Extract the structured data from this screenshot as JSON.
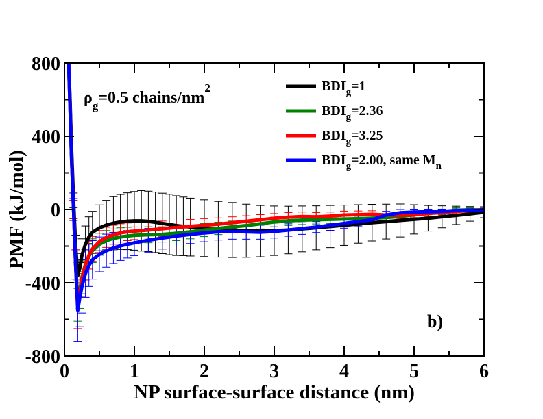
{
  "chart_data": {
    "type": "line",
    "title": "",
    "xlabel": "NP surface-surface distance (nm)",
    "ylabel": "PMF (kJ/mol)",
    "xlim": [
      0,
      6
    ],
    "ylim": [
      -800,
      800
    ],
    "x_ticks": [
      0,
      1,
      2,
      3,
      4,
      5,
      6
    ],
    "y_ticks": [
      -800,
      -400,
      0,
      400,
      800
    ],
    "x_tick_labels": [
      "0",
      "1",
      "2",
      "3",
      "4",
      "5",
      "6"
    ],
    "y_tick_labels": [
      "-800",
      "-400",
      "0",
      "400",
      "800"
    ],
    "grid": false,
    "legend_position": "top-right",
    "annotation": {
      "rho": "ρ",
      "rho_sub": "g",
      "value": "=0.5 chains/nm",
      "sup": "2"
    },
    "panel_label": "b)",
    "series": [
      {
        "name": "BDIg=1",
        "legend": {
          "base": "BDI",
          "sub": "g",
          "rest": "=1",
          "sub2": ""
        },
        "color": "#000000",
        "x": [
          0.06,
          0.08,
          0.1,
          0.13,
          0.16,
          0.19,
          0.22,
          0.25,
          0.3,
          0.35,
          0.4,
          0.5,
          0.6,
          0.7,
          0.8,
          0.9,
          1.0,
          1.1,
          1.2,
          1.3,
          1.4,
          1.5,
          1.6,
          1.7,
          1.8,
          2.0,
          2.2,
          2.4,
          2.6,
          2.8,
          3.0,
          3.2,
          3.4,
          3.6,
          3.8,
          4.0,
          4.2,
          4.4,
          4.6,
          4.8,
          5.0,
          5.2,
          5.4,
          5.6,
          5.8,
          6.0
        ],
        "y": [
          800,
          600,
          350,
          50,
          -200,
          -360,
          -320,
          -250,
          -190,
          -150,
          -125,
          -100,
          -85,
          -75,
          -68,
          -64,
          -62,
          -62,
          -65,
          -70,
          -76,
          -82,
          -88,
          -92,
          -96,
          -102,
          -108,
          -112,
          -116,
          -118,
          -116,
          -112,
          -106,
          -100,
          -93,
          -86,
          -79,
          -72,
          -66,
          -60,
          -54,
          -48,
          -40,
          -32,
          -24,
          -15
        ],
        "error": [
          0,
          0,
          0,
          40,
          60,
          70,
          80,
          90,
          100,
          110,
          115,
          125,
          135,
          145,
          150,
          155,
          160,
          165,
          165,
          165,
          165,
          165,
          163,
          160,
          158,
          155,
          152,
          150,
          145,
          140,
          135,
          130,
          125,
          120,
          115,
          110,
          105,
          100,
          95,
          90,
          80,
          70,
          60,
          50,
          40,
          30
        ]
      },
      {
        "name": "BDIg=2.36",
        "legend": {
          "base": "BDI",
          "sub": "g",
          "rest": "=2.36",
          "sub2": ""
        },
        "color": "#008000",
        "x": [
          0.06,
          0.08,
          0.1,
          0.13,
          0.16,
          0.19,
          0.22,
          0.25,
          0.3,
          0.35,
          0.4,
          0.5,
          0.6,
          0.7,
          0.8,
          0.9,
          1.0,
          1.2,
          1.4,
          1.6,
          1.8,
          2.0,
          2.2,
          2.4,
          2.6,
          2.8,
          3.0,
          3.2,
          3.4,
          3.6,
          3.8,
          4.0,
          4.2,
          4.4,
          4.6,
          4.8,
          5.0,
          5.2,
          5.4,
          5.6,
          5.8,
          6.0
        ],
        "y": [
          800,
          560,
          300,
          0,
          -300,
          -500,
          -440,
          -370,
          -300,
          -255,
          -225,
          -190,
          -170,
          -158,
          -150,
          -145,
          -141,
          -138,
          -136,
          -130,
          -122,
          -112,
          -103,
          -95,
          -88,
          -78,
          -68,
          -62,
          -58,
          -56,
          -54,
          -52,
          -50,
          -48,
          -44,
          -38,
          -30,
          -20,
          -12,
          -4,
          -2,
          -5
        ],
        "error": [
          0,
          0,
          0,
          50,
          80,
          110,
          100,
          90,
          80,
          70,
          65,
          60,
          55,
          52,
          50,
          48,
          46,
          44,
          42,
          40,
          38,
          36,
          34,
          32,
          30,
          28,
          26,
          25,
          24,
          23,
          22,
          21,
          20,
          19,
          18,
          17,
          16,
          15,
          14,
          13,
          12,
          12
        ]
      },
      {
        "name": "BDIg=3.25",
        "legend": {
          "base": "BDI",
          "sub": "g",
          "rest": "=3.25",
          "sub2": ""
        },
        "color": "#ff0000",
        "x": [
          0.06,
          0.08,
          0.1,
          0.13,
          0.16,
          0.19,
          0.22,
          0.25,
          0.3,
          0.35,
          0.4,
          0.5,
          0.6,
          0.7,
          0.8,
          0.9,
          1.0,
          1.2,
          1.4,
          1.6,
          1.8,
          2.0,
          2.2,
          2.4,
          2.6,
          2.8,
          3.0,
          3.2,
          3.4,
          3.6,
          3.8,
          4.0,
          4.2,
          4.4,
          4.6,
          4.8,
          5.0,
          5.2,
          5.4,
          5.6,
          5.8,
          6.0
        ],
        "y": [
          800,
          560,
          300,
          0,
          -300,
          -520,
          -460,
          -380,
          -300,
          -250,
          -215,
          -175,
          -152,
          -138,
          -128,
          -122,
          -118,
          -112,
          -105,
          -98,
          -92,
          -86,
          -80,
          -72,
          -64,
          -56,
          -48,
          -42,
          -38,
          -40,
          -36,
          -30,
          -28,
          -26,
          -30,
          -32,
          -28,
          -22,
          -16,
          -10,
          -6,
          -4
        ],
        "error": [
          0,
          0,
          0,
          50,
          80,
          130,
          110,
          95,
          85,
          75,
          68,
          60,
          55,
          52,
          50,
          48,
          46,
          44,
          42,
          40,
          38,
          36,
          34,
          32,
          30,
          28,
          26,
          25,
          24,
          23,
          22,
          21,
          20,
          19,
          18,
          17,
          16,
          15,
          14,
          13,
          12,
          12
        ]
      },
      {
        "name": "BDIg=2.00, same Mn",
        "legend": {
          "base": "BDI",
          "sub": "g",
          "rest": "=2.00, same M",
          "sub2": "n"
        },
        "color": "#0000ff",
        "x": [
          0.06,
          0.08,
          0.1,
          0.13,
          0.16,
          0.19,
          0.22,
          0.25,
          0.3,
          0.35,
          0.4,
          0.5,
          0.6,
          0.7,
          0.8,
          0.9,
          1.0,
          1.2,
          1.4,
          1.6,
          1.8,
          2.0,
          2.2,
          2.4,
          2.6,
          2.8,
          3.0,
          3.2,
          3.4,
          3.6,
          3.8,
          4.0,
          4.2,
          4.4,
          4.6,
          4.8,
          5.0,
          5.2,
          5.4,
          5.6,
          5.8,
          6.0
        ],
        "y": [
          800,
          560,
          300,
          0,
          -300,
          -550,
          -480,
          -420,
          -350,
          -305,
          -275,
          -245,
          -225,
          -210,
          -198,
          -190,
          -182,
          -168,
          -156,
          -145,
          -136,
          -128,
          -122,
          -120,
          -122,
          -124,
          -120,
          -112,
          -104,
          -96,
          -86,
          -76,
          -66,
          -56,
          -30,
          -18,
          -14,
          -12,
          -10,
          -6,
          -4,
          -2
        ],
        "error": [
          0,
          0,
          0,
          60,
          100,
          170,
          160,
          145,
          130,
          115,
          105,
          95,
          90,
          85,
          80,
          75,
          70,
          65,
          60,
          55,
          50,
          48,
          45,
          42,
          40,
          38,
          36,
          34,
          32,
          30,
          28,
          26,
          24,
          22,
          20,
          18,
          16,
          14,
          12,
          10,
          10,
          10
        ]
      }
    ]
  }
}
